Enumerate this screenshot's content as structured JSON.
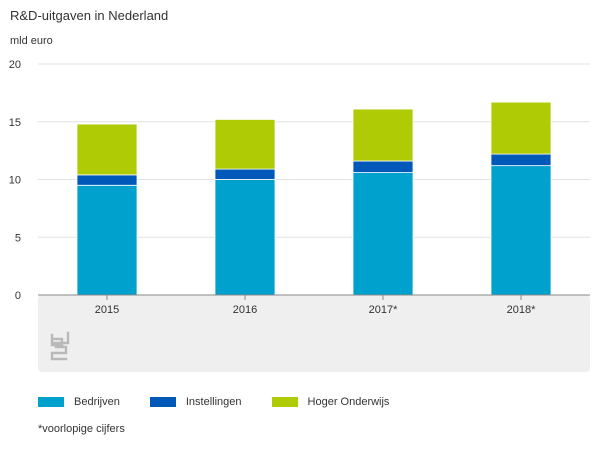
{
  "chart_data": {
    "type": "bar",
    "stacked": true,
    "title": "R&D-uitgaven in Nederland",
    "ylabel": "mld euro",
    "xlabel": "",
    "ylim": [
      0,
      20
    ],
    "yticks": [
      0,
      5,
      10,
      15,
      20
    ],
    "grid": true,
    "legend_position": "bottom",
    "categories": [
      "2015",
      "2016",
      "2017*",
      "2018*"
    ],
    "series": [
      {
        "name": "Bedrijven",
        "color": "#00a1cd",
        "values": [
          9.5,
          10.0,
          10.6,
          11.2
        ]
      },
      {
        "name": "Instellingen",
        "color": "#0058b8",
        "values": [
          0.9,
          0.9,
          1.0,
          1.0
        ]
      },
      {
        "name": "Hoger Onderwijs",
        "color": "#afcb05",
        "values": [
          4.4,
          4.3,
          4.5,
          4.5
        ]
      }
    ],
    "footnote": "*voorlopige cijfers"
  },
  "logo": {
    "name": "cbs-logo"
  }
}
